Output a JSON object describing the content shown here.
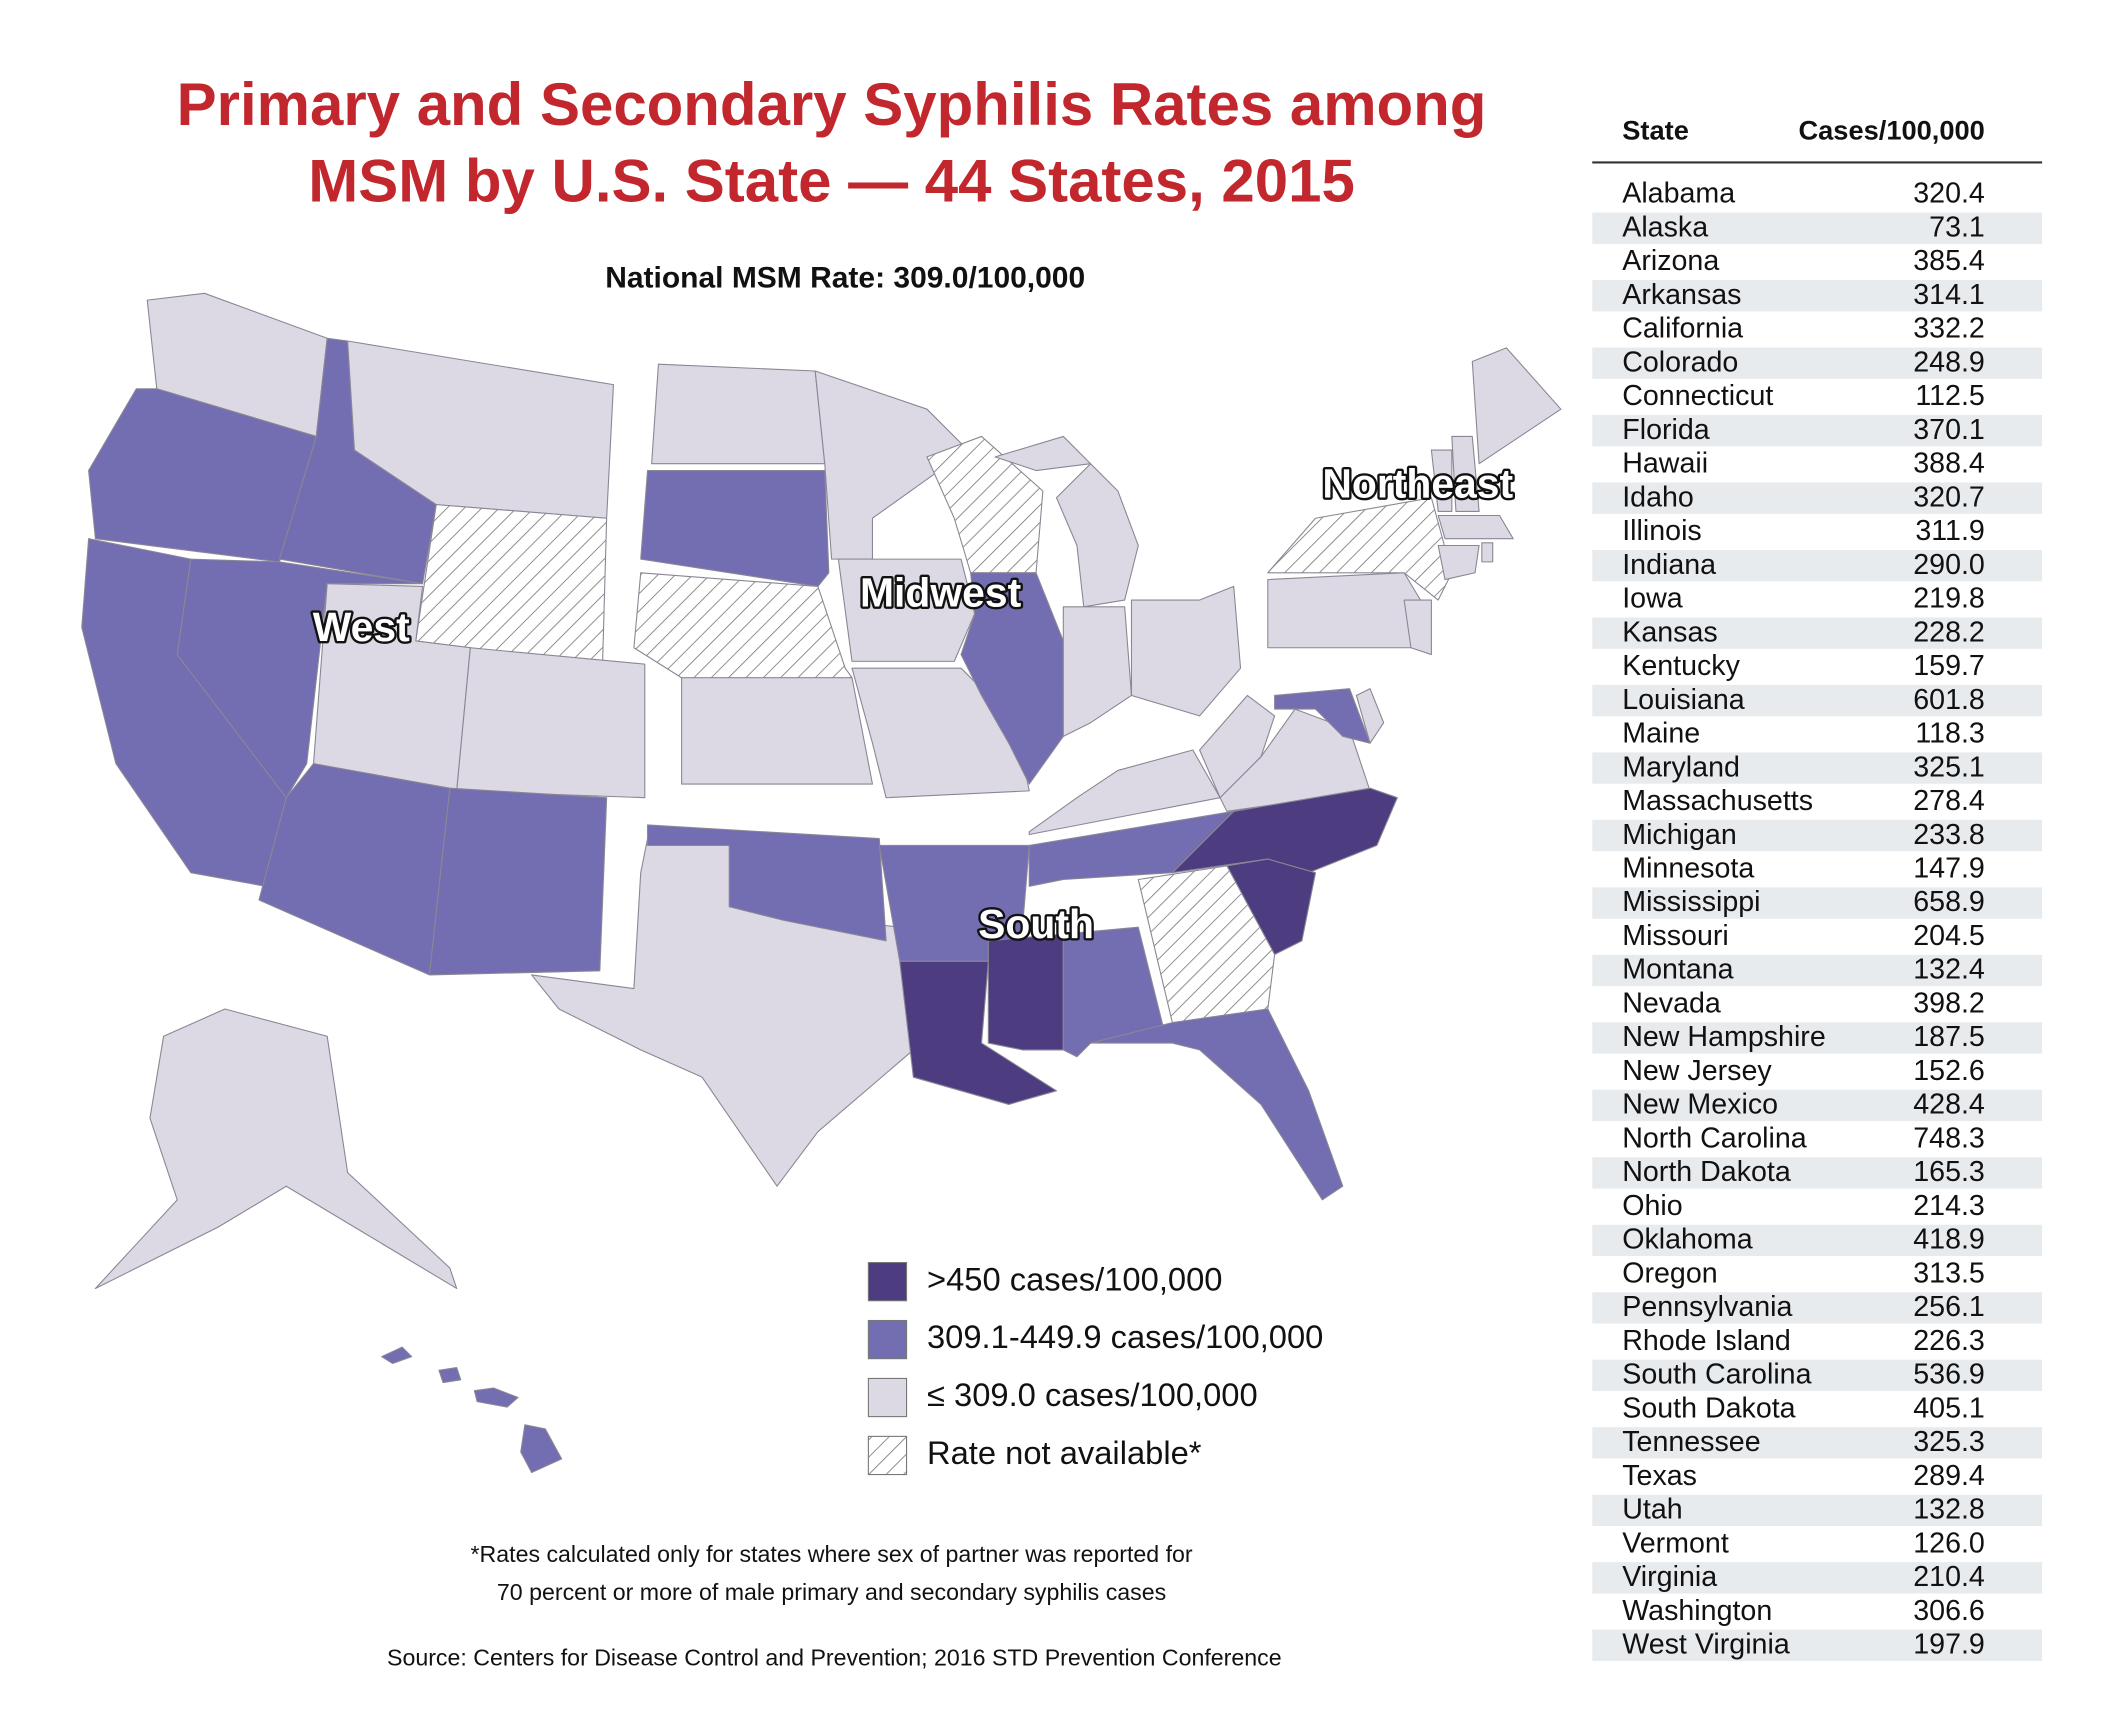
{
  "title": [
    "Primary and Secondary Syphilis Rates among",
    "MSM by U.S. State — 44 States, 2015"
  ],
  "subtitle": "National MSM Rate: 309.0/100,000",
  "regions": [
    "West",
    "Midwest",
    "Northeast",
    "South"
  ],
  "legend": [
    {
      "label": ">450 cases/100,000",
      "color": "#4d3c80"
    },
    {
      "label": "309.1-449.9 cases/100,000",
      "color": "#736db2"
    },
    {
      "label": "≤ 309.0 cases/100,000",
      "color": "#dcd8e4"
    },
    {
      "label": "Rate not available*"
    }
  ],
  "footnote": [
    "*Rates calculated only for states where sex of partner was reported for",
    "70 percent or more of male primary and secondary syphilis cases"
  ],
  "source": "Source: Centers for Disease Control and Prevention; 2016 STD Prevention Conference",
  "table": {
    "columns": [
      "State",
      "Cases/100,000"
    ],
    "rows": [
      [
        "Alabama",
        "320.4"
      ],
      [
        "Alaska",
        "73.1"
      ],
      [
        "Arizona",
        "385.4"
      ],
      [
        "Arkansas",
        "314.1"
      ],
      [
        "California",
        "332.2"
      ],
      [
        "Colorado",
        "248.9"
      ],
      [
        "Connecticut",
        "112.5"
      ],
      [
        "Florida",
        "370.1"
      ],
      [
        "Hawaii",
        "388.4"
      ],
      [
        "Idaho",
        "320.7"
      ],
      [
        "Illinois",
        "311.9"
      ],
      [
        "Indiana",
        "290.0"
      ],
      [
        "Iowa",
        "219.8"
      ],
      [
        "Kansas",
        "228.2"
      ],
      [
        "Kentucky",
        "159.7"
      ],
      [
        "Louisiana",
        "601.8"
      ],
      [
        "Maine",
        "118.3"
      ],
      [
        "Maryland",
        "325.1"
      ],
      [
        "Massachusetts",
        "278.4"
      ],
      [
        "Michigan",
        "233.8"
      ],
      [
        "Minnesota",
        "147.9"
      ],
      [
        "Mississippi",
        "658.9"
      ],
      [
        "Missouri",
        "204.5"
      ],
      [
        "Montana",
        "132.4"
      ],
      [
        "Nevada",
        "398.2"
      ],
      [
        "New Hampshire",
        "187.5"
      ],
      [
        "New Jersey",
        "152.6"
      ],
      [
        "New Mexico",
        "428.4"
      ],
      [
        "North Carolina",
        "748.3"
      ],
      [
        "North Dakota",
        "165.3"
      ],
      [
        "Ohio",
        "214.3"
      ],
      [
        "Oklahoma",
        "418.9"
      ],
      [
        "Oregon",
        "313.5"
      ],
      [
        "Pennsylvania",
        "256.1"
      ],
      [
        "Rhode Island",
        "226.3"
      ],
      [
        "South Carolina",
        "536.9"
      ],
      [
        "South Dakota",
        "405.1"
      ],
      [
        "Tennessee",
        "325.3"
      ],
      [
        "Texas",
        "289.4"
      ],
      [
        "Utah",
        "132.8"
      ],
      [
        "Vermont",
        "126.0"
      ],
      [
        "Virginia",
        "210.4"
      ],
      [
        "Washington",
        "306.6"
      ],
      [
        "West Virginia",
        "197.9"
      ]
    ]
  }
}
